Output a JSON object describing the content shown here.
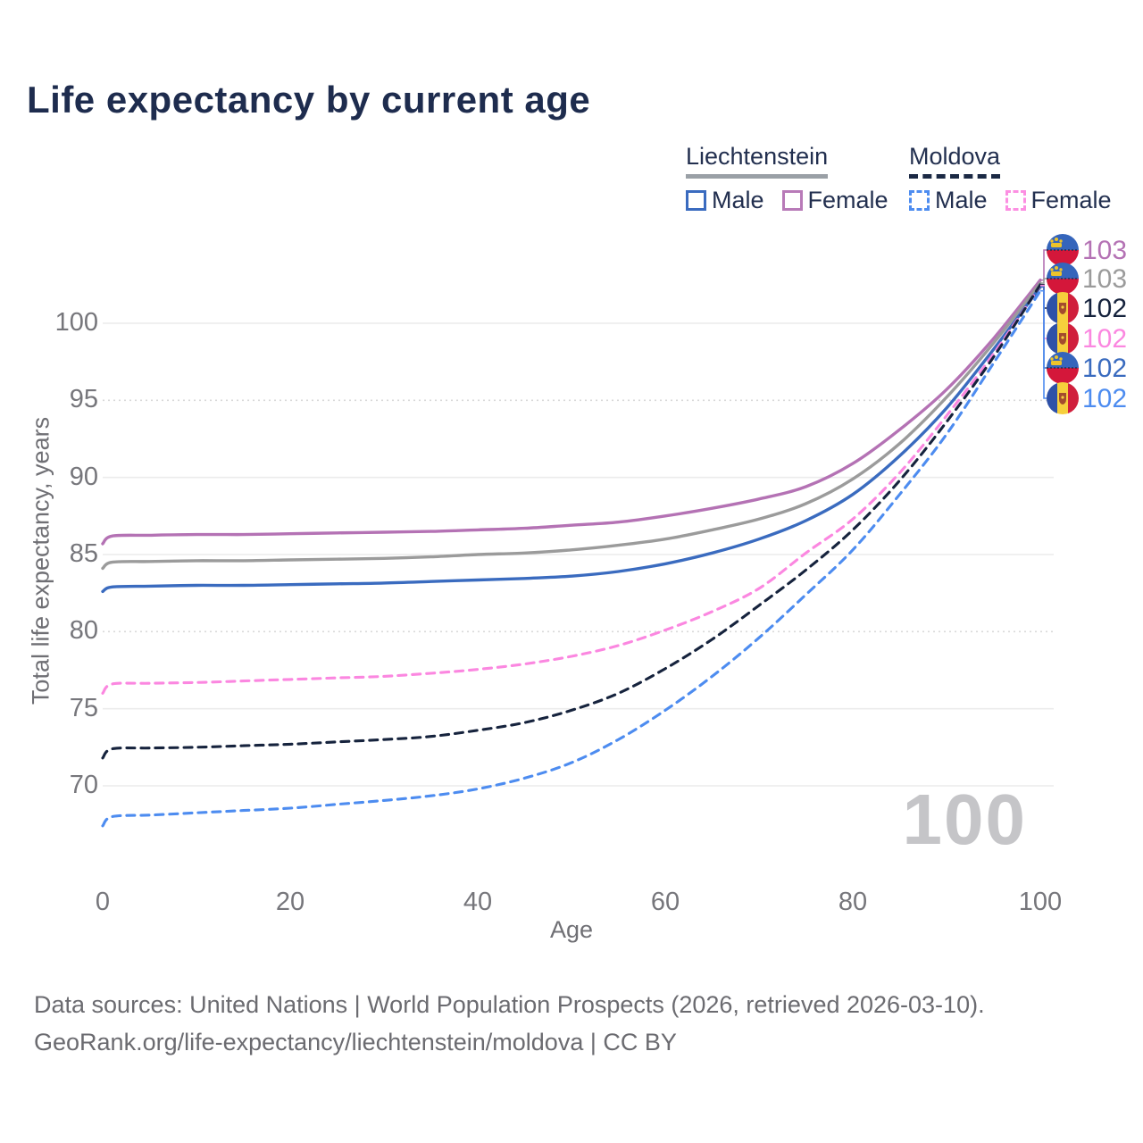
{
  "title": "Life expectancy by current age",
  "legend": {
    "groups": [
      {
        "country": "Liechtenstein",
        "items": [
          {
            "label": "Male"
          },
          {
            "label": "Female"
          }
        ]
      },
      {
        "country": "Moldova",
        "items": [
          {
            "label": "Male"
          },
          {
            "label": "Female"
          }
        ]
      }
    ]
  },
  "axes": {
    "y_title": "Total life expectancy, years",
    "x_title": "Age",
    "y_ticks": [
      100,
      95,
      90,
      85,
      80,
      75,
      70
    ],
    "x_ticks": [
      0,
      20,
      40,
      60,
      80,
      100
    ]
  },
  "watermark": "100",
  "footer": {
    "line1": "Data sources: United Nations | World Population Prospects (2026, retrieved 2026-03-10).",
    "line2": "GeoRank.org/life-expectancy/liechtenstein/moldova | CC BY"
  },
  "colors": {
    "title_text": "#1e2c4e",
    "tick_text": "#76767b",
    "gridline": "#ececec",
    "gridline_dotted": "#d9d9d9",
    "liechtenstein_female": "#b472b4",
    "liechtenstein_total": "#9b9b9b",
    "liechtenstein_male": "#3a6bbf",
    "moldova_female": "#fb87e0",
    "moldova_total": "#16233d",
    "moldova_male": "#4d8cf0"
  },
  "chart_data": {
    "type": "line",
    "title": "Life expectancy by current age",
    "xlabel": "Age",
    "ylabel": "Total life expectancy, years",
    "xlim": [
      0,
      100
    ],
    "ylim": [
      65,
      104
    ],
    "grid": true,
    "x": [
      0,
      1,
      5,
      10,
      15,
      20,
      25,
      30,
      35,
      40,
      45,
      50,
      55,
      60,
      65,
      70,
      75,
      80,
      85,
      90,
      95,
      100
    ],
    "series": [
      {
        "name": "Liechtenstein Female",
        "country": "Liechtenstein",
        "sex": "Female",
        "color": "#b472b4",
        "dash": false,
        "flag": "liechtenstein",
        "end_label": "103",
        "values": [
          85.7,
          86.2,
          86.25,
          86.3,
          86.3,
          86.35,
          86.4,
          86.45,
          86.5,
          86.6,
          86.7,
          86.9,
          87.1,
          87.5,
          88.0,
          88.6,
          89.4,
          90.9,
          93.1,
          95.7,
          99.0,
          102.8
        ]
      },
      {
        "name": "Liechtenstein Both sexes",
        "country": "Liechtenstein",
        "sex": "Both",
        "color": "#9b9b9b",
        "dash": false,
        "flag": "liechtenstein",
        "end_label": "103",
        "values": [
          84.1,
          84.5,
          84.55,
          84.6,
          84.6,
          84.65,
          84.7,
          84.75,
          84.85,
          85.0,
          85.1,
          85.3,
          85.6,
          86.0,
          86.6,
          87.3,
          88.3,
          89.9,
          92.2,
          95.2,
          98.7,
          102.6
        ]
      },
      {
        "name": "Liechtenstein Male",
        "country": "Liechtenstein",
        "sex": "Male",
        "color": "#3a6bbf",
        "dash": false,
        "flag": "liechtenstein",
        "end_label": "102",
        "values": [
          82.6,
          82.9,
          82.95,
          83.0,
          83.0,
          83.05,
          83.1,
          83.15,
          83.25,
          83.35,
          83.45,
          83.6,
          83.9,
          84.4,
          85.1,
          86.0,
          87.2,
          88.9,
          91.4,
          94.5,
          98.3,
          102.35
        ]
      },
      {
        "name": "Moldova Female",
        "country": "Moldova",
        "sex": "Female",
        "color": "#fb87e0",
        "dash": true,
        "flag": "moldova",
        "end_label": "102",
        "values": [
          76.0,
          76.6,
          76.65,
          76.7,
          76.8,
          76.9,
          77.0,
          77.1,
          77.3,
          77.55,
          77.9,
          78.4,
          79.1,
          80.1,
          81.3,
          82.8,
          85.1,
          87.3,
          90.3,
          94.0,
          98.0,
          102.45
        ]
      },
      {
        "name": "Moldova Both sexes",
        "country": "Moldova",
        "sex": "Both",
        "color": "#16233d",
        "dash": true,
        "flag": "moldova",
        "end_label": "102",
        "values": [
          71.8,
          72.4,
          72.45,
          72.5,
          72.6,
          72.7,
          72.85,
          73.0,
          73.2,
          73.6,
          74.1,
          74.9,
          76.0,
          77.6,
          79.5,
          81.7,
          84.0,
          86.6,
          89.8,
          93.6,
          97.8,
          102.5
        ]
      },
      {
        "name": "Moldova Male",
        "country": "Moldova",
        "sex": "Male",
        "color": "#4d8cf0",
        "dash": true,
        "flag": "moldova",
        "end_label": "102",
        "values": [
          67.4,
          68.0,
          68.1,
          68.25,
          68.4,
          68.55,
          68.8,
          69.05,
          69.35,
          69.8,
          70.5,
          71.5,
          73.0,
          74.9,
          77.1,
          79.6,
          82.4,
          85.3,
          88.9,
          92.8,
          97.4,
          102.1
        ]
      }
    ],
    "end_label_order": [
      "Liechtenstein Female",
      "Liechtenstein Both sexes",
      "Moldova Both sexes",
      "Moldova Female",
      "Liechtenstein Male",
      "Moldova Male"
    ],
    "legend_position": "top-right"
  }
}
